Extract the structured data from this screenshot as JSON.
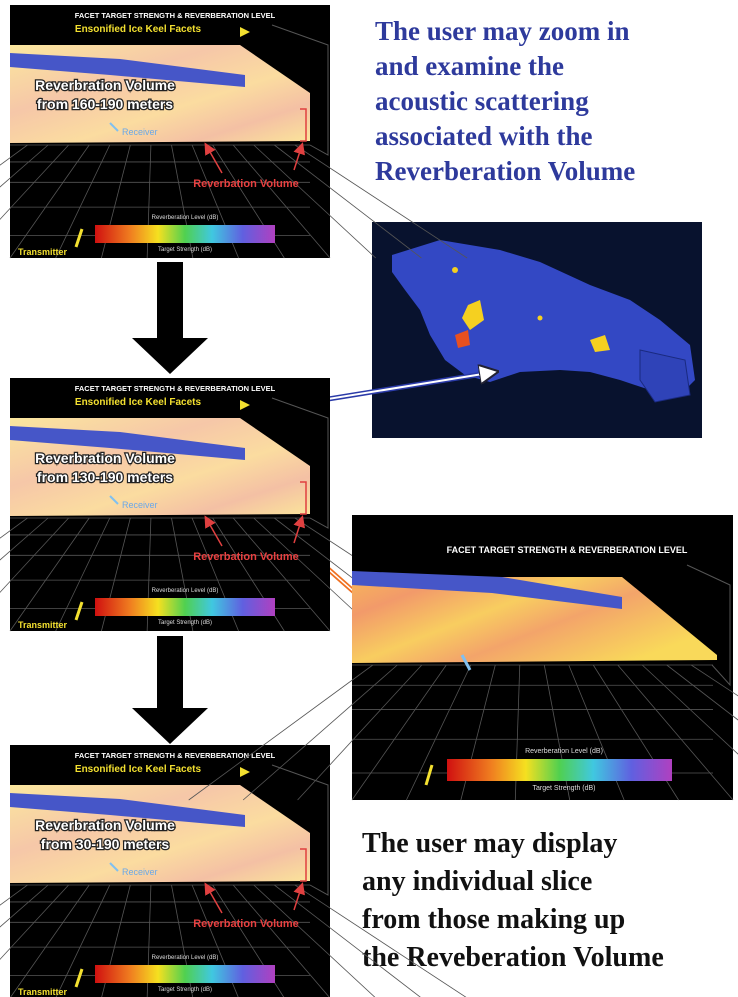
{
  "caption_top": [
    "The user may zoom in",
    "and examine the",
    "acoustic scattering",
    "associated with the",
    "Reverberation Volume"
  ],
  "caption_bottom": [
    "The user may display",
    "any individual slice",
    "from those making up",
    "the Reveberation Volume"
  ],
  "panels": [
    {
      "title": "FACET TARGET STRENGTH & REVERBERATION LEVEL",
      "facets_label": "Ensonified Ice Keel Facets",
      "volume_label": [
        "Reverbration Volume",
        "from 160-190 meters"
      ],
      "receiver_label": "Receiver",
      "reverb_label": "Reverbation Volume",
      "colorbar_title": "Reverberation Level (dB)",
      "colorbar_subtitle": "Target Strength (dB)",
      "transmitter_label": "Transmitter"
    },
    {
      "title": "FACET TARGET STRENGTH & REVERBERATION LEVEL",
      "facets_label": "Ensonified Ice Keel Facets",
      "volume_label": [
        "Reverbration Volume",
        "from 130-190 meters"
      ],
      "receiver_label": "Receiver",
      "reverb_label": "Reverbation Volume",
      "colorbar_title": "Reverberation Level (dB)",
      "colorbar_subtitle": "Target Strength (dB)",
      "transmitter_label": "Transmitter"
    },
    {
      "title": "FACET TARGET STRENGTH & REVERBERATION LEVEL",
      "facets_label": "Ensonified Ice Keel Facets",
      "volume_label": [
        "Reverbration Volume",
        "from 30-190 meters"
      ],
      "receiver_label": "Receiver",
      "reverb_label": "Reverbation Volume",
      "colorbar_title": "Reverberation Level (dB)",
      "colorbar_subtitle": "Target Strength (dB)",
      "transmitter_label": "Transmitter"
    }
  ],
  "zoom_panel": {
    "title": "FACET TARGET STRENGTH & REVERBERATION LEVEL",
    "colorbar_title": "Reverberation Level (dB)",
    "colorbar_subtitle": "Target Strength (dB)"
  }
}
